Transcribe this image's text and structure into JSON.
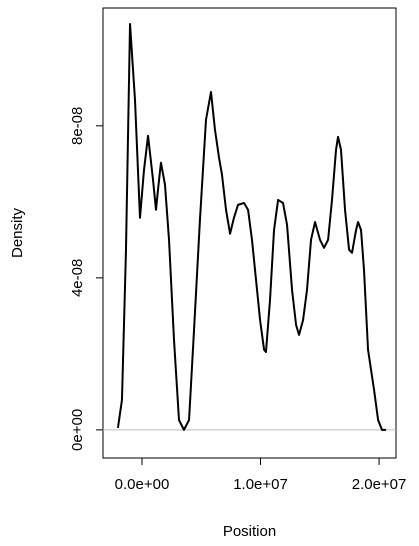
{
  "chart_data": {
    "type": "line",
    "x_label": "Position",
    "y_label": "Density",
    "xlim": [
      -3290000,
      21430000
    ],
    "ylim": [
      -7.4e-09,
      1.11e-07
    ],
    "xticks": [
      {
        "value": 0,
        "label": "0.0e+00"
      },
      {
        "value": 10000000,
        "label": "1.0e+07"
      },
      {
        "value": 20000000,
        "label": "2.0e+07"
      }
    ],
    "yticks": [
      {
        "value": 0,
        "label": "0e+00"
      },
      {
        "value": 4e-08,
        "label": "4e-08"
      },
      {
        "value": 8e-08,
        "label": "8e-08"
      }
    ],
    "zero_line_color": "#bebebe",
    "series": [
      {
        "color": "#000000",
        "x": [
          -2030000,
          -1690000,
          -1350000,
          -1010000,
          -590000,
          -170000,
          170000,
          510000,
          930000,
          1180000,
          1350000,
          1600000,
          1940000,
          2280000,
          2700000,
          3120000,
          3540000,
          3970000,
          4390000,
          4890000,
          5400000,
          5820000,
          6160000,
          6500000,
          6750000,
          7090000,
          7430000,
          7760000,
          8100000,
          8610000,
          8950000,
          9280000,
          9620000,
          9960000,
          10300000,
          10460000,
          10800000,
          11140000,
          11480000,
          11900000,
          12240000,
          12660000,
          13000000,
          13250000,
          13590000,
          13920000,
          14260000,
          14600000,
          15020000,
          15360000,
          15700000,
          16030000,
          16370000,
          16540000,
          16790000,
          17130000,
          17470000,
          17720000,
          18060000,
          18230000,
          18480000,
          18730000,
          19070000,
          19580000,
          19920000,
          20250000,
          20590000
        ],
        "values": [
          5.3e-10,
          7.9e-09,
          4.74e-08,
          1.068e-07,
          8.68e-08,
          5.58e-08,
          6.84e-08,
          7.74e-08,
          6.58e-08,
          5.79e-08,
          6.32e-08,
          7.03e-08,
          6.45e-08,
          5e-08,
          2.37e-08,
          2.6e-09,
          0,
          2.6e-09,
          2.63e-08,
          5.53e-08,
          8.16e-08,
          8.89e-08,
          7.89e-08,
          7.16e-08,
          6.71e-08,
          5.79e-08,
          5.16e-08,
          5.58e-08,
          5.92e-08,
          5.97e-08,
          5.79e-08,
          5e-08,
          3.95e-08,
          2.89e-08,
          2.11e-08,
          2.05e-08,
          3.42e-08,
          5.26e-08,
          6.05e-08,
          5.97e-08,
          5.39e-08,
          3.68e-08,
          2.76e-08,
          2.5e-08,
          2.89e-08,
          3.68e-08,
          5e-08,
          5.47e-08,
          5e-08,
          4.79e-08,
          5e-08,
          6.05e-08,
          7.37e-08,
          7.71e-08,
          7.37e-08,
          5.79e-08,
          4.74e-08,
          4.66e-08,
          5.26e-08,
          5.47e-08,
          5.26e-08,
          4.21e-08,
          2.11e-08,
          1.05e-08,
          2.6e-09,
          0,
          0
        ]
      }
    ]
  }
}
